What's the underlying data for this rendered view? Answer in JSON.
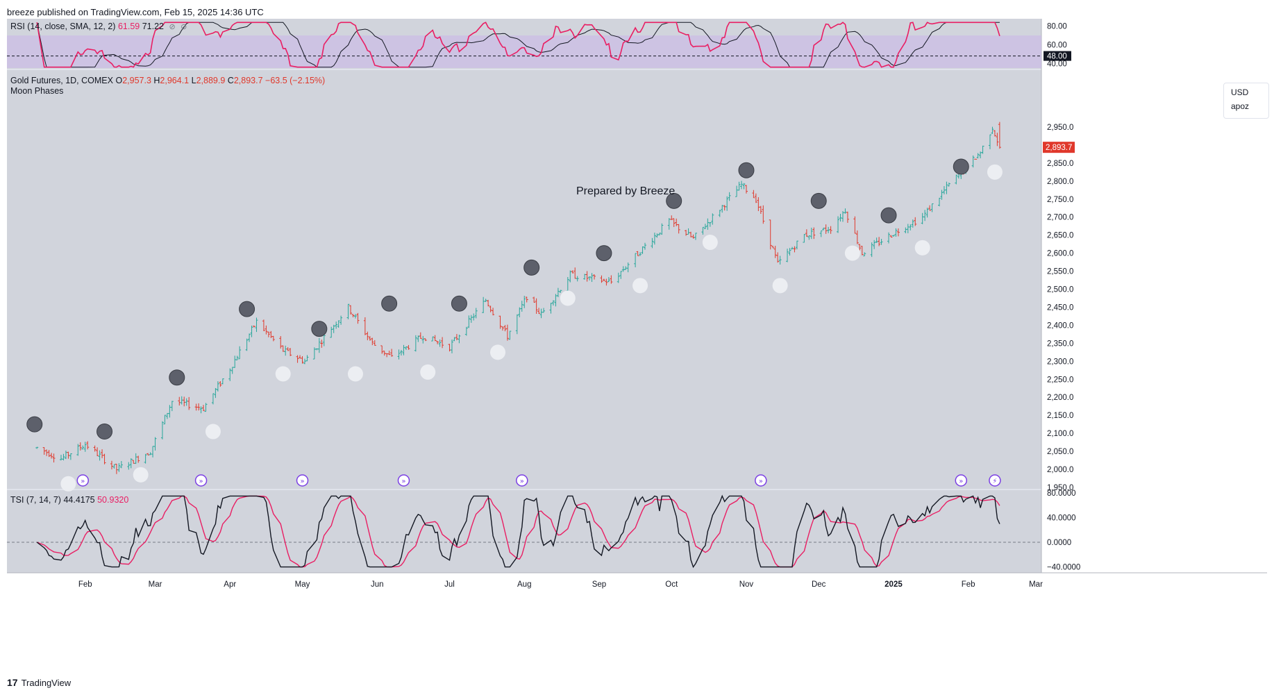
{
  "attribution": "breeze published on TradingView.com, Feb 15, 2025 14:36 UTC",
  "footer": {
    "logo_glyph": "17",
    "brand": "TradingView"
  },
  "rsi": {
    "label": "RSI (14, close, SMA, 12, 2)",
    "value": "61.59",
    "sma_value": "71.22",
    "icon1": "⊘",
    "icon2": "⊘",
    "ticks": [
      "80.00",
      "60.00",
      "40.00"
    ],
    "level_tag": "48.00",
    "line_color": "#e91e63",
    "band_color": "#c9b8e8"
  },
  "main": {
    "symbol": "Gold Futures, 1D, COMEX",
    "o_label": "O",
    "o": "2,957.3",
    "h_label": "H",
    "h": "2,964.1",
    "l_label": "L",
    "l": "2,889.9",
    "c_label": "C",
    "c": "2,893.7",
    "change": "−63.5 (−2.15%)",
    "indicator": "Moon Phases",
    "watermark": "Prepared by Breeze",
    "currency": "USD",
    "unit": "apoz",
    "last_price_tag": "2,893.7",
    "up_color": "#26a69a",
    "down_color": "#e0382b"
  },
  "tsi": {
    "label": "TSI (7, 14, 7)",
    "value": "44.4175",
    "signal": "50.9320",
    "ticks": [
      "80.0000",
      "40.0000",
      "0.0000",
      "−40.0000"
    ],
    "line_color": "#131722",
    "signal_color": "#e91e63"
  },
  "time_axis": [
    "Feb",
    "Mar",
    "Apr",
    "May",
    "Jun",
    "Jul",
    "Aug",
    "Sep",
    "Oct",
    "Nov",
    "Dec",
    "2025",
    "Feb",
    "Mar"
  ],
  "chart_data": {
    "type": "candlestick",
    "title": "Gold Futures, 1D, COMEX",
    "y_ticks": [
      "2,950.0",
      "2,900.0",
      "2,850.0",
      "2,800.0",
      "2,750.0",
      "2,700.0",
      "2,650.0",
      "2,600.0",
      "2,550.0",
      "2,500.0",
      "2,450.0",
      "2,400.0",
      "2,350.0",
      "2,300.0",
      "2,250.0",
      "2,200.0",
      "2,150.0",
      "2,100.0",
      "2,050.0",
      "2,000.0",
      "1,950.0"
    ],
    "ylim": [
      1950,
      3000
    ],
    "price_path": [
      [
        "2024-01-12",
        2060
      ],
      [
        "2024-01-22",
        2030
      ],
      [
        "2024-02-01",
        2070
      ],
      [
        "2024-02-14",
        2000
      ],
      [
        "2024-02-28",
        2050
      ],
      [
        "2024-03-08",
        2190
      ],
      [
        "2024-03-21",
        2170
      ],
      [
        "2024-04-01",
        2280
      ],
      [
        "2024-04-12",
        2410
      ],
      [
        "2024-04-23",
        2330
      ],
      [
        "2024-05-02",
        2300
      ],
      [
        "2024-05-20",
        2450
      ],
      [
        "2024-05-30",
        2350
      ],
      [
        "2024-06-07",
        2310
      ],
      [
        "2024-06-20",
        2370
      ],
      [
        "2024-07-01",
        2340
      ],
      [
        "2024-07-16",
        2470
      ],
      [
        "2024-07-25",
        2370
      ],
      [
        "2024-08-02",
        2480
      ],
      [
        "2024-08-08",
        2430
      ],
      [
        "2024-08-20",
        2540
      ],
      [
        "2024-09-06",
        2520
      ],
      [
        "2024-09-20",
        2620
      ],
      [
        "2024-09-30",
        2690
      ],
      [
        "2024-10-10",
        2640
      ],
      [
        "2024-10-30",
        2790
      ],
      [
        "2024-11-05",
        2750
      ],
      [
        "2024-11-14",
        2570
      ],
      [
        "2024-11-25",
        2650
      ],
      [
        "2024-12-06",
        2670
      ],
      [
        "2024-12-12",
        2720
      ],
      [
        "2024-12-19",
        2600
      ],
      [
        "2025-01-02",
        2660
      ],
      [
        "2025-01-13",
        2700
      ],
      [
        "2025-01-24",
        2790
      ],
      [
        "2025-02-06",
        2880
      ],
      [
        "2025-02-11",
        2950
      ],
      [
        "2025-02-14",
        2894
      ]
    ],
    "new_moons": [
      [
        "2024-01-11",
        2125
      ],
      [
        "2024-02-09",
        2105
      ],
      [
        "2024-03-10",
        2255
      ],
      [
        "2024-04-08",
        2445
      ],
      [
        "2024-05-08",
        2390
      ],
      [
        "2024-06-06",
        2460
      ],
      [
        "2024-07-05",
        2460
      ],
      [
        "2024-08-04",
        2560
      ],
      [
        "2024-09-03",
        2600
      ],
      [
        "2024-10-02",
        2745
      ],
      [
        "2024-11-01",
        2830
      ],
      [
        "2024-12-01",
        2745
      ],
      [
        "2024-12-30",
        2705
      ],
      [
        "2025-01-29",
        2840
      ]
    ],
    "full_moons": [
      [
        "2024-01-25",
        1960
      ],
      [
        "2024-02-24",
        1985
      ],
      [
        "2024-03-25",
        2105
      ],
      [
        "2024-04-23",
        2265
      ],
      [
        "2024-05-23",
        2265
      ],
      [
        "2024-06-22",
        2270
      ],
      [
        "2024-07-21",
        2325
      ],
      [
        "2024-08-19",
        2475
      ],
      [
        "2024-09-18",
        2510
      ],
      [
        "2024-10-17",
        2630
      ],
      [
        "2024-11-15",
        2510
      ],
      [
        "2024-12-15",
        2600
      ],
      [
        "2025-01-13",
        2615
      ],
      [
        "2025-02-12",
        2825
      ]
    ],
    "event_markers": [
      "2024-01-31",
      "2024-03-20",
      "2024-05-01",
      "2024-06-12",
      "2024-07-31",
      "2024-11-07",
      "2025-01-29",
      "2025-02-12"
    ]
  }
}
